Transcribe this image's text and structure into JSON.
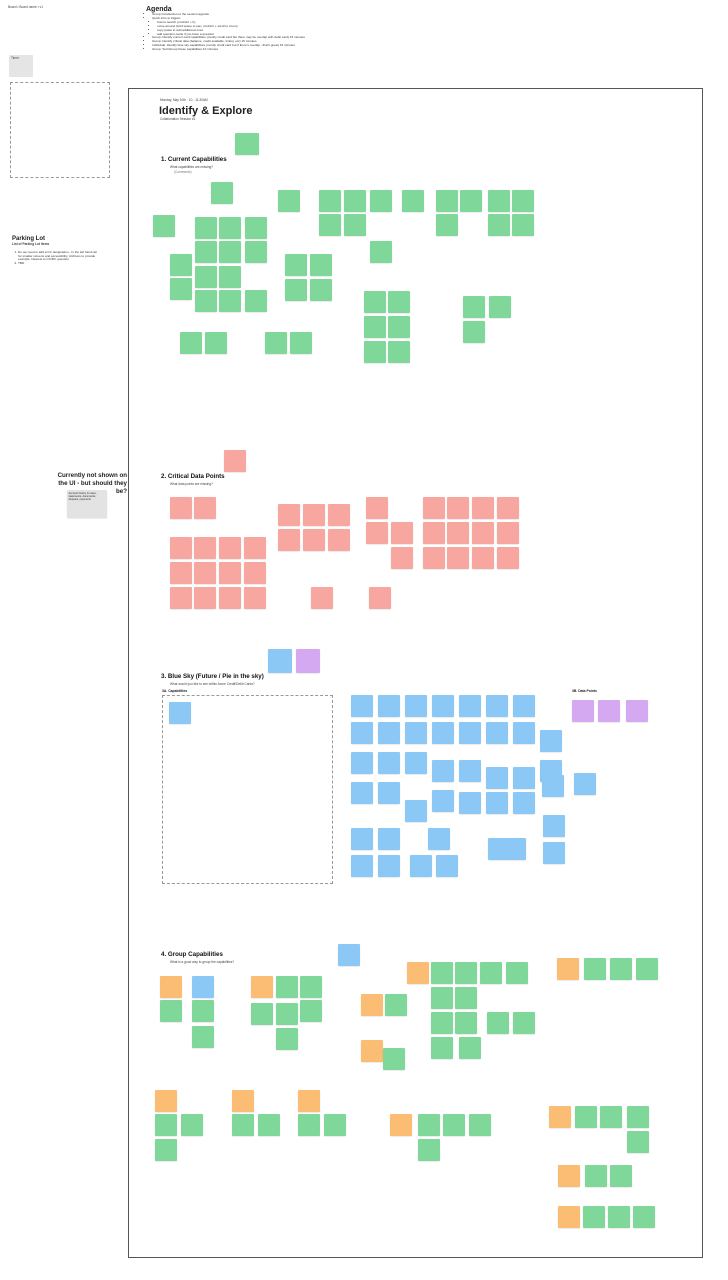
{
  "corner_label": "Board • Board name • v1",
  "sidebar": {
    "chip_label": "Timer",
    "parking_lot": {
      "title": "Parking Lot",
      "subtitle": "List of Parking Lot Items",
      "items": [
        "Do we need to add a CC designation - In the left hand rail for smaller screens and accessibility, Archives to provide example. Nearest to CC/DC question.",
        "TBD"
      ]
    },
    "not_shown": {
      "title": "Currently not shown on the UI - but should they be?",
      "note": "Account history & notes, statements, documents, disputes, payments"
    }
  },
  "agenda": {
    "title": "Agenda",
    "items": [
      "Group Introduction to the session agenda",
      "Quick intro to Figjam",
      "how to search (cmd/ctrl + F)",
      "move around (hold space to pan, cmd/ctrl + scroll to zoom)",
      "copy paste to add additional ones",
      "add question cards if you have a question",
      "Group: Identify current card capabilities (mostly credit card but there may be overlap with debit card) 15 minutes",
      "Group: Identify critical data (balance, credit available, limits), etc) 15 minutes",
      "Individual: Identify blue sky capabilities (mostly credit card but if there's overlap - that's great) 15 minutes",
      "Group: Sort/Group these capabilities 10 minutes"
    ]
  },
  "board": {
    "date": "Monday, May 10th · 10 - 11:30AM",
    "title": "Identify & Explore",
    "subtitle": "Collaboration Session #1",
    "sections": [
      {
        "title": "1. Current Capabilities",
        "question": "What capabilities are missing?",
        "hint": "(Comments)"
      },
      {
        "title": "2. Critical Data Points",
        "question": "What data points are missing?"
      },
      {
        "title": "3. Blue Sky (Future / Pie in the sky)",
        "question": "What would you like to see within Acme Credit/Debit Cards?",
        "sub_a": "3A. Capabilities",
        "sub_b": "3B. Data Points"
      },
      {
        "title": "4. Group Capabilities",
        "question": "What is a good way to group the capabilities?"
      }
    ]
  },
  "colors": {
    "green": "#7fd79a",
    "red": "#f7a7a0",
    "blue": "#8cc8f6",
    "purple": "#d5a9f2",
    "orange": "#fbbd74"
  }
}
